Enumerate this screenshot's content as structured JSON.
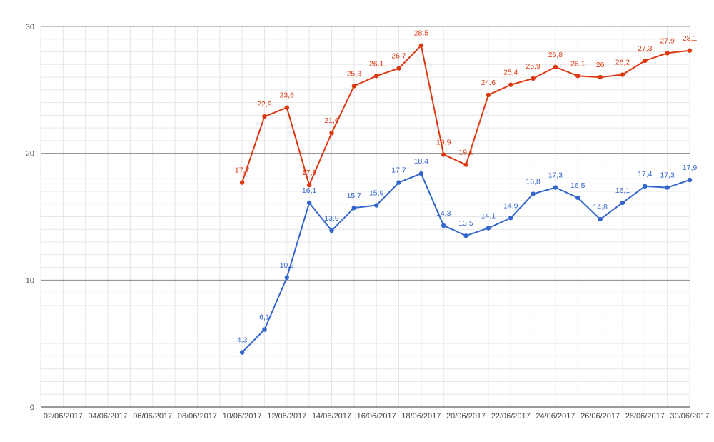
{
  "chart_data": {
    "type": "line",
    "title": "",
    "xlabel": "",
    "ylabel": "",
    "x_tick_labels": [
      "02/06/2017",
      "04/06/2017",
      "06/06/2017",
      "08/06/2017",
      "10/06/2017",
      "12/06/2017",
      "14/06/2017",
      "16/06/2017",
      "18/06/2017",
      "20/06/2017",
      "22/06/2017",
      "24/06/2017",
      "26/06/2017",
      "28/06/2017",
      "30/06/2017"
    ],
    "ylim": [
      0,
      30
    ],
    "y_ticks": [
      0,
      10,
      20,
      30
    ],
    "y_tick_labels": [
      "0",
      "10",
      "20",
      "30"
    ],
    "grid": true,
    "legend": "none",
    "x_dates": [
      "10/06/2017",
      "11/06/2017",
      "12/06/2017",
      "13/06/2017",
      "14/06/2017",
      "15/06/2017",
      "16/06/2017",
      "17/06/2017",
      "18/06/2017",
      "19/06/2017",
      "20/06/2017",
      "21/06/2017",
      "22/06/2017",
      "23/06/2017",
      "24/06/2017",
      "25/06/2017",
      "26/06/2017",
      "27/06/2017",
      "28/06/2017",
      "29/06/2017",
      "30/06/2017"
    ],
    "series": [
      {
        "color": "#dc3912",
        "values": [
          17.7,
          22.9,
          23.6,
          17.5,
          21.6,
          25.3,
          26.1,
          26.7,
          28.5,
          19.9,
          19.1,
          24.6,
          25.4,
          25.9,
          26.8,
          26.1,
          26,
          26.2,
          27.3,
          27.9,
          28.1
        ],
        "labels": [
          "17,7",
          "22,9",
          "23,6",
          "17,5",
          "21,6",
          "25,3",
          "26,1",
          "26,7",
          "28,5",
          "19,9",
          "19,1",
          "24,6",
          "25,4",
          "25,9",
          "26,8",
          "26,1",
          "26",
          "26,2",
          "27,3",
          "27,9",
          "28,1"
        ]
      },
      {
        "color": "#3366cc",
        "values": [
          4.3,
          6.1,
          10.2,
          16.1,
          13.9,
          15.7,
          15.9,
          17.7,
          18.4,
          14.3,
          13.5,
          14.1,
          14.9,
          16.8,
          17.3,
          16.5,
          14.8,
          16.1,
          17.4,
          17.3,
          17.9
        ],
        "labels": [
          "4,3",
          "6,1",
          "10,2",
          "16,1",
          "13,9",
          "15,7",
          "15,9",
          "17,7",
          "18,4",
          "14,3",
          "13,5",
          "14,1",
          "14,9",
          "16,8",
          "17,3",
          "16,5",
          "14,8",
          "16,1",
          "17,4",
          "17,3",
          "17,9"
        ]
      }
    ]
  }
}
